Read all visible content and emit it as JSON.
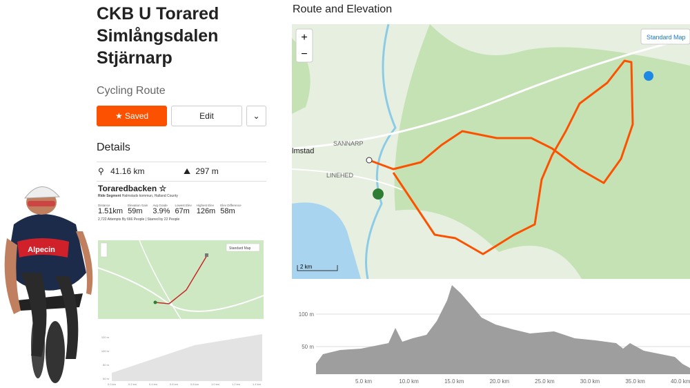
{
  "route": {
    "title": "CKB U Torared Simlångsdalen Stjärnarp",
    "subtitle": "Cycling Route",
    "saved_button": "Saved",
    "edit_button": "Edit",
    "details_heading": "Details",
    "distance": "41.16 km",
    "elevation": "297 m"
  },
  "segment": {
    "name": "Toraredbacken",
    "type": "Ride Segment",
    "location": "Halmstads kommun, Halland County",
    "stats": [
      {
        "label": "Distance",
        "value": "1.51km"
      },
      {
        "label": "Elevation Gain",
        "value": "59m"
      },
      {
        "label": "Avg Grade",
        "value": "3.9%"
      },
      {
        "label": "Lowest Elev",
        "value": "67m"
      },
      {
        "label": "Highest Elev",
        "value": "126m"
      },
      {
        "label": "Elev Difference",
        "value": "58m"
      }
    ],
    "attempts": "2,722 Attempts By 666 People | Starred by 22 People",
    "map_style": "Standard Map",
    "profile_y_labels": [
      "120 m",
      "100 m",
      "80 m",
      "60 m"
    ],
    "profile_x_labels": [
      "0.0 km",
      "0.2 km",
      "0.4 km",
      "0.6 km",
      "0.8 km",
      "1.0 km",
      "1.2 km",
      "1.4 km"
    ]
  },
  "cyclist": {
    "jersey": "Alpecin"
  },
  "map": {
    "heading": "Route and Elevation",
    "zoom_in": "+",
    "zoom_out": "−",
    "map_style": "Standard Map",
    "places": [
      "SANNARP",
      "LINEHED",
      "lmstad"
    ],
    "scale": "2 km"
  },
  "elevation": {
    "y_labels": [
      "100 m",
      "50 m"
    ],
    "x_labels": [
      "5.0 km",
      "10.0 km",
      "15.0 km",
      "20.0 km",
      "25.0 km",
      "30.0 km",
      "35.0 km",
      "40.0 km"
    ]
  }
}
